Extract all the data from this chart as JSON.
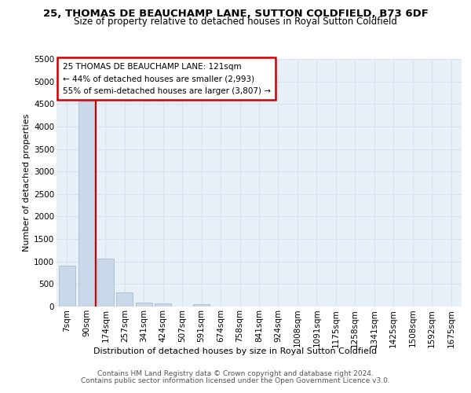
{
  "title1": "25, THOMAS DE BEAUCHAMP LANE, SUTTON COLDFIELD, B73 6DF",
  "title2": "Size of property relative to detached houses in Royal Sutton Coldfield",
  "xlabel": "Distribution of detached houses by size in Royal Sutton Coldfield",
  "ylabel": "Number of detached properties",
  "footer1": "Contains HM Land Registry data © Crown copyright and database right 2024.",
  "footer2": "Contains public sector information licensed under the Open Government Licence v3.0.",
  "annotation_line1": "25 THOMAS DE BEAUCHAMP LANE: 121sqm",
  "annotation_line2": "← 44% of detached houses are smaller (2,993)",
  "annotation_line3": "55% of semi-detached houses are larger (3,807) →",
  "bar_color": "#c9d9ea",
  "bar_edge_color": "#a8bdd0",
  "vline_color": "#cc0000",
  "vline_x": 1.5,
  "categories": [
    "7sqm",
    "90sqm",
    "174sqm",
    "257sqm",
    "341sqm",
    "424sqm",
    "507sqm",
    "591sqm",
    "674sqm",
    "758sqm",
    "841sqm",
    "924sqm",
    "1008sqm",
    "1091sqm",
    "1175sqm",
    "1258sqm",
    "1341sqm",
    "1425sqm",
    "1508sqm",
    "1592sqm",
    "1675sqm"
  ],
  "values": [
    900,
    4560,
    1070,
    310,
    80,
    65,
    0,
    60,
    0,
    0,
    0,
    0,
    0,
    0,
    0,
    0,
    0,
    0,
    0,
    0,
    0
  ],
  "ylim": [
    0,
    5500
  ],
  "yticks": [
    0,
    500,
    1000,
    1500,
    2000,
    2500,
    3000,
    3500,
    4000,
    4500,
    5000,
    5500
  ],
  "grid_color": "#d5e4f0",
  "background_color": "#e8f0f8",
  "annotation_box_color": "#ffffff",
  "annotation_box_edge": "#cc0000",
  "title1_fontsize": 9.5,
  "title2_fontsize": 8.5,
  "ylabel_fontsize": 8.0,
  "xlabel_fontsize": 8.0,
  "tick_fontsize": 7.5,
  "annotation_fontsize": 7.5,
  "footer_fontsize": 6.5
}
